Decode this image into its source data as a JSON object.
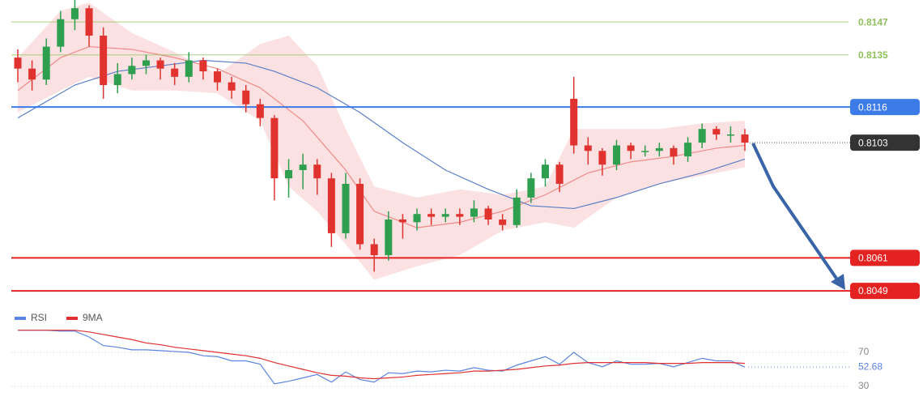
{
  "chart_data": [
    {
      "type": "candlestick",
      "open": [
        0.8134,
        0.813,
        0.8126,
        0.8138,
        0.8148,
        0.8152,
        0.8142,
        0.8124,
        0.8128,
        0.8131,
        0.8133,
        0.813,
        0.8127,
        0.8133,
        0.8129,
        0.8125,
        0.8122,
        0.8117,
        0.8112,
        0.809,
        0.8093,
        0.8095,
        0.809,
        0.807,
        0.8088,
        0.8066,
        0.8062,
        0.8075,
        0.8074,
        0.8077,
        0.8076,
        0.8077,
        0.8076,
        0.8079,
        0.8075,
        0.8073,
        0.8083,
        0.809,
        0.8095,
        0.8119,
        0.8102,
        0.81,
        0.8095,
        0.8102,
        0.81,
        0.81,
        0.8101,
        0.8098,
        0.8103,
        0.8108,
        0.8106,
        0.8106
      ],
      "high": [
        0.8137,
        0.8133,
        0.8141,
        0.8151,
        0.8155,
        0.8153,
        0.8145,
        0.8132,
        0.8134,
        0.8135,
        0.8134,
        0.8132,
        0.8136,
        0.8134,
        0.813,
        0.8127,
        0.8124,
        0.8119,
        0.8113,
        0.8097,
        0.8099,
        0.8097,
        0.8092,
        0.8092,
        0.809,
        0.8068,
        0.8078,
        0.8077,
        0.8079,
        0.8079,
        0.8079,
        0.8079,
        0.8082,
        0.808,
        0.8077,
        0.8086,
        0.8092,
        0.8097,
        0.8096,
        0.8127,
        0.8105,
        0.8101,
        0.8104,
        0.8103,
        0.8102,
        0.8103,
        0.8102,
        0.8105,
        0.811,
        0.8109,
        0.8109,
        0.8108
      ],
      "low": [
        0.8125,
        0.8122,
        0.8124,
        0.8136,
        0.8144,
        0.8138,
        0.8119,
        0.8121,
        0.8126,
        0.8128,
        0.8126,
        0.8124,
        0.8125,
        0.8126,
        0.8122,
        0.8119,
        0.8114,
        0.8109,
        0.8082,
        0.8083,
        0.8086,
        0.8084,
        0.8065,
        0.8068,
        0.8064,
        0.8056,
        0.806,
        0.8068,
        0.8071,
        0.8073,
        0.8074,
        0.8073,
        0.8074,
        0.8073,
        0.8071,
        0.8072,
        0.8081,
        0.8087,
        0.8085,
        0.8099,
        0.8095,
        0.8091,
        0.8093,
        0.8097,
        0.8098,
        0.8098,
        0.8095,
        0.8096,
        0.8101,
        0.8104,
        0.8103,
        0.81
      ],
      "close": [
        0.813,
        0.8126,
        0.8138,
        0.8148,
        0.8152,
        0.8142,
        0.8124,
        0.8128,
        0.8131,
        0.8133,
        0.813,
        0.8127,
        0.8133,
        0.8129,
        0.8125,
        0.8122,
        0.8117,
        0.8112,
        0.809,
        0.8093,
        0.8095,
        0.809,
        0.807,
        0.8088,
        0.8066,
        0.8062,
        0.8075,
        0.8074,
        0.8077,
        0.8076,
        0.8077,
        0.8076,
        0.8079,
        0.8075,
        0.8073,
        0.8083,
        0.809,
        0.8095,
        0.8088,
        0.8102,
        0.81,
        0.8095,
        0.8102,
        0.81,
        0.81,
        0.8101,
        0.8098,
        0.8103,
        0.8108,
        0.8106,
        0.8106,
        0.8103
      ],
      "up_color": "#2e9e4f",
      "down_color": "#e0332f",
      "ylim": [
        0.8044,
        0.8155
      ],
      "band": {
        "color": "#f7c9c9",
        "x": [
          0,
          3,
          5,
          8,
          11,
          14,
          17,
          19,
          21,
          23,
          25,
          28,
          31,
          34,
          37,
          39,
          42,
          45,
          48,
          51
        ],
        "upper": [
          0.8134,
          0.8151,
          0.8154,
          0.8143,
          0.8136,
          0.8128,
          0.8139,
          0.8142,
          0.8131,
          0.8108,
          0.8087,
          0.8083,
          0.8086,
          0.8084,
          0.8087,
          0.8108,
          0.8108,
          0.8108,
          0.811,
          0.8111
        ],
        "lower": [
          0.8114,
          0.8122,
          0.8127,
          0.8122,
          0.8122,
          0.8121,
          0.8111,
          0.8087,
          0.8078,
          0.8066,
          0.8053,
          0.8058,
          0.8062,
          0.8071,
          0.8074,
          0.8072,
          0.8083,
          0.8088,
          0.8091,
          0.8094
        ]
      },
      "lines": [
        {
          "color": "#f08a8a",
          "x": [
            0,
            3,
            5,
            8,
            11,
            14,
            17,
            20,
            23,
            25,
            28,
            31,
            34,
            37,
            40,
            43,
            46,
            49,
            51
          ],
          "values": [
            0.8122,
            0.8134,
            0.8138,
            0.8137,
            0.8134,
            0.813,
            0.8123,
            0.8111,
            0.8093,
            0.8078,
            0.8072,
            0.8074,
            0.8078,
            0.8084,
            0.8092,
            0.8096,
            0.8098,
            0.8101,
            0.8102
          ]
        },
        {
          "color": "#5b7fc7",
          "x": [
            0,
            2,
            4,
            7,
            10,
            13,
            16,
            18,
            21,
            24,
            27,
            30,
            33,
            36,
            39,
            42,
            45,
            48,
            51
          ],
          "values": [
            0.8112,
            0.8118,
            0.8124,
            0.8129,
            0.8131,
            0.8133,
            0.8132,
            0.8129,
            0.8123,
            0.8114,
            0.8103,
            0.8093,
            0.8086,
            0.808,
            0.8079,
            0.8083,
            0.8088,
            0.8092,
            0.8097
          ]
        }
      ],
      "levels": [
        {
          "value": 0.8147,
          "color": "#8fbf5a",
          "boxed": false
        },
        {
          "value": 0.8135,
          "color": "#8fbf5a",
          "boxed": false
        },
        {
          "value": 0.8116,
          "color": "#3d7be8",
          "boxed": true
        },
        {
          "value": 0.8061,
          "color": "#e52222",
          "boxed": true
        },
        {
          "value": 0.8049,
          "color": "#e52222",
          "boxed": true
        }
      ],
      "last_color": "#333333"
    },
    {
      "type": "line",
      "series": [
        {
          "name": "RSI",
          "color": "#5b84e0",
          "values": [
            96,
            96,
            96,
            95,
            95,
            88,
            78,
            76,
            73,
            73,
            72,
            71,
            70,
            66,
            65,
            60,
            60,
            56,
            33,
            36,
            40,
            44,
            35,
            47,
            38,
            35,
            46,
            45,
            48,
            47,
            49,
            48,
            52,
            49,
            48,
            55,
            60,
            65,
            56,
            70,
            58,
            53,
            60,
            56,
            56,
            57,
            53,
            58,
            63,
            60,
            60,
            52.68
          ]
        },
        {
          "name": "9MA",
          "color": "#e03030",
          "values": [
            96,
            96,
            96,
            96,
            96,
            94,
            91,
            88,
            85,
            81,
            79,
            76,
            74,
            72,
            70,
            68,
            66,
            63,
            58,
            54,
            50,
            46,
            43,
            42,
            40,
            39,
            40,
            41,
            43,
            44,
            45,
            46,
            48,
            48,
            49,
            50,
            52,
            54,
            55,
            57,
            58,
            58,
            58,
            58,
            58,
            57,
            57,
            57,
            58,
            58,
            58,
            57
          ]
        }
      ],
      "ylim": [
        10,
        100
      ],
      "yticks": [
        70,
        30
      ]
    }
  ]
}
